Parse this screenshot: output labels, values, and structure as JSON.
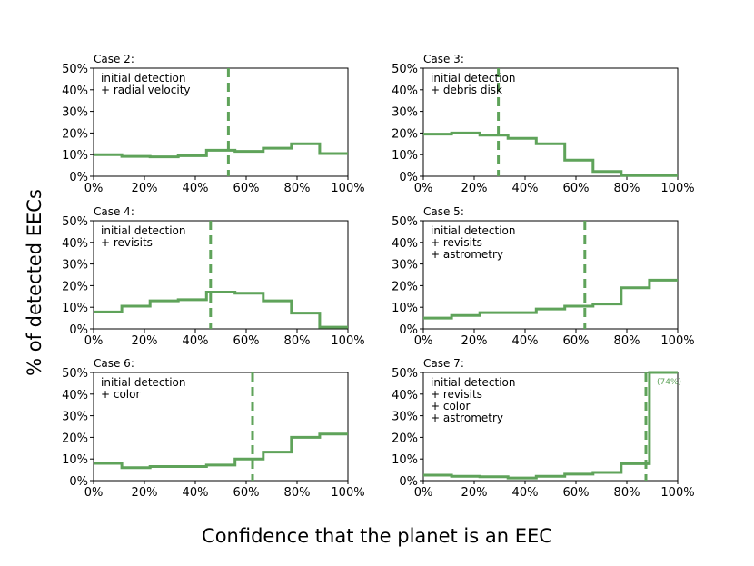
{
  "figure": {
    "ylabel": "% of detected EECs",
    "xlabel": "Confidence that the planet is an EEC"
  },
  "colors": {
    "line": "#5fa35a",
    "axis": "#000000",
    "text": "#000000"
  },
  "chart_data": [
    {
      "type": "step",
      "title": "Case 2:",
      "annotation": [
        "initial detection",
        "+ radial velocity"
      ],
      "bin_edges": [
        0,
        11.1,
        22.2,
        33.3,
        44.4,
        55.6,
        66.7,
        77.8,
        88.9,
        100
      ],
      "values": [
        10,
        9.2,
        9,
        9.5,
        12,
        11.5,
        13,
        15,
        10.5
      ],
      "threshold": 53,
      "xlim": [
        0,
        100
      ],
      "ylim": [
        0,
        50
      ],
      "xticks": [
        "0%",
        "20%",
        "40%",
        "60%",
        "80%",
        "100%"
      ],
      "yticks": [
        "0%",
        "10%",
        "20%",
        "30%",
        "40%",
        "50%"
      ]
    },
    {
      "type": "step",
      "title": "Case 3:",
      "annotation": [
        "initial detection",
        "+ debris disk"
      ],
      "bin_edges": [
        0,
        11.1,
        22.2,
        33.3,
        44.4,
        55.6,
        66.7,
        77.8,
        88.9,
        100
      ],
      "values": [
        19.5,
        20,
        19,
        17.5,
        15,
        7.5,
        2.2,
        0.3,
        0.3
      ],
      "threshold": 29.5,
      "xlim": [
        0,
        100
      ],
      "ylim": [
        0,
        50
      ],
      "xticks": [
        "0%",
        "20%",
        "40%",
        "60%",
        "80%",
        "100%"
      ],
      "yticks": [
        "0%",
        "10%",
        "20%",
        "30%",
        "40%",
        "50%"
      ]
    },
    {
      "type": "step",
      "title": "Case 4:",
      "annotation": [
        "initial detection",
        "+ revisits"
      ],
      "bin_edges": [
        0,
        11.1,
        22.2,
        33.3,
        44.4,
        55.6,
        66.7,
        77.8,
        88.9,
        100
      ],
      "values": [
        7.8,
        10.5,
        13,
        13.5,
        17,
        16.5,
        13,
        7.3,
        0.8
      ],
      "threshold": 46,
      "xlim": [
        0,
        100
      ],
      "ylim": [
        0,
        50
      ],
      "xticks": [
        "0%",
        "20%",
        "40%",
        "60%",
        "80%",
        "100%"
      ],
      "yticks": [
        "0%",
        "10%",
        "20%",
        "30%",
        "40%",
        "50%"
      ]
    },
    {
      "type": "step",
      "title": "Case 5:",
      "annotation": [
        "initial detection",
        "+ revisits",
        "+ astrometry"
      ],
      "bin_edges": [
        0,
        11.1,
        22.2,
        33.3,
        44.4,
        55.6,
        66.7,
        77.8,
        88.9,
        100
      ],
      "values": [
        5,
        6.2,
        7.5,
        7.5,
        9.2,
        10.5,
        11.5,
        19,
        22.5
      ],
      "threshold": 63.5,
      "xlim": [
        0,
        100
      ],
      "ylim": [
        0,
        50
      ],
      "xticks": [
        "0%",
        "20%",
        "40%",
        "60%",
        "80%",
        "100%"
      ],
      "yticks": [
        "0%",
        "10%",
        "20%",
        "30%",
        "40%",
        "50%"
      ]
    },
    {
      "type": "step",
      "title": "Case 6:",
      "annotation": [
        "initial detection",
        "+ color"
      ],
      "bin_edges": [
        0,
        11.1,
        22.2,
        33.3,
        44.4,
        55.6,
        66.7,
        77.8,
        88.9,
        100
      ],
      "values": [
        8,
        6,
        6.5,
        6.5,
        7.2,
        10,
        13.2,
        20,
        21.5
      ],
      "threshold": 62.5,
      "xlim": [
        0,
        100
      ],
      "ylim": [
        0,
        50
      ],
      "xticks": [
        "0%",
        "20%",
        "40%",
        "60%",
        "80%",
        "100%"
      ],
      "yticks": [
        "0%",
        "10%",
        "20%",
        "30%",
        "40%",
        "50%"
      ]
    },
    {
      "type": "step",
      "title": "Case 7:",
      "annotation": [
        "initial detection",
        "+ revisits",
        "+ color",
        "+ astrometry"
      ],
      "bin_edges": [
        0,
        11.1,
        22.2,
        33.3,
        44.4,
        55.6,
        66.7,
        77.8,
        88.9,
        90,
        100
      ],
      "values": [
        2.5,
        2,
        1.8,
        1.2,
        2,
        3,
        3.8,
        7.8,
        74,
        74
      ],
      "threshold": 87.5,
      "offscale_label": "(74%)",
      "xlim": [
        0,
        100
      ],
      "ylim": [
        0,
        50
      ],
      "xticks": [
        "0%",
        "20%",
        "40%",
        "60%",
        "80%",
        "100%"
      ],
      "yticks": [
        "0%",
        "10%",
        "20%",
        "30%",
        "40%",
        "50%"
      ]
    }
  ]
}
